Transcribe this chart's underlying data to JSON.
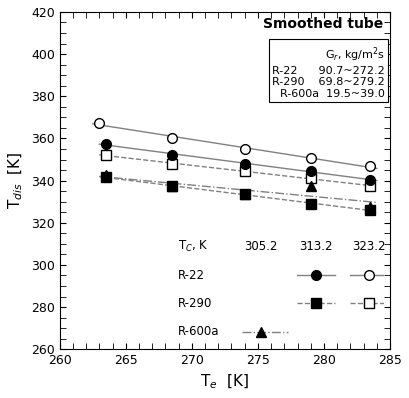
{
  "title": "Smoothed tube",
  "xlabel": "T$_e$  [K]",
  "ylabel": "T$_{dis}$  [K]",
  "xlim": [
    260,
    285
  ],
  "ylim": [
    260,
    420
  ],
  "xticks": [
    260,
    265,
    270,
    275,
    280,
    285
  ],
  "yticks": [
    260,
    280,
    300,
    320,
    340,
    360,
    380,
    400,
    420
  ],
  "r22_323_x": [
    263.0,
    268.5,
    274.0,
    279.0,
    283.5
  ],
  "r22_323_y": [
    367.5,
    360.0,
    355.0,
    350.5,
    347.0
  ],
  "r22_313_x": [
    263.5,
    268.5,
    274.0,
    279.0,
    283.5
  ],
  "r22_313_y": [
    357.5,
    352.0,
    348.0,
    344.5,
    340.5
  ],
  "r290_323_x": [
    263.5,
    268.5,
    274.0,
    279.0,
    283.5
  ],
  "r290_323_y": [
    352.0,
    348.0,
    344.5,
    341.0,
    337.5
  ],
  "r290_313_x": [
    263.5,
    268.5,
    274.0,
    279.0,
    283.5
  ],
  "r290_313_y": [
    341.5,
    337.5,
    333.5,
    329.0,
    326.0
  ],
  "r600a_305_x": [
    263.5,
    268.5,
    274.0,
    279.0,
    283.5
  ],
  "r600a_305_y": [
    342.5,
    337.5,
    333.5,
    337.5,
    327.5
  ],
  "gr_header": "G$_r$, kg/m$^2$s",
  "gr_r22": "R-22      90.7~272.2",
  "gr_r290": "R-290    69.8~279.2",
  "gr_r600a": "R-600a  19.5~39.0",
  "leg_header": "T$_C$, K",
  "leg_305": "305.2",
  "leg_313": "313.2",
  "leg_323": "323.2",
  "leg_r22": "R-22",
  "leg_r290": "R-290",
  "leg_r600a": "R-600a"
}
